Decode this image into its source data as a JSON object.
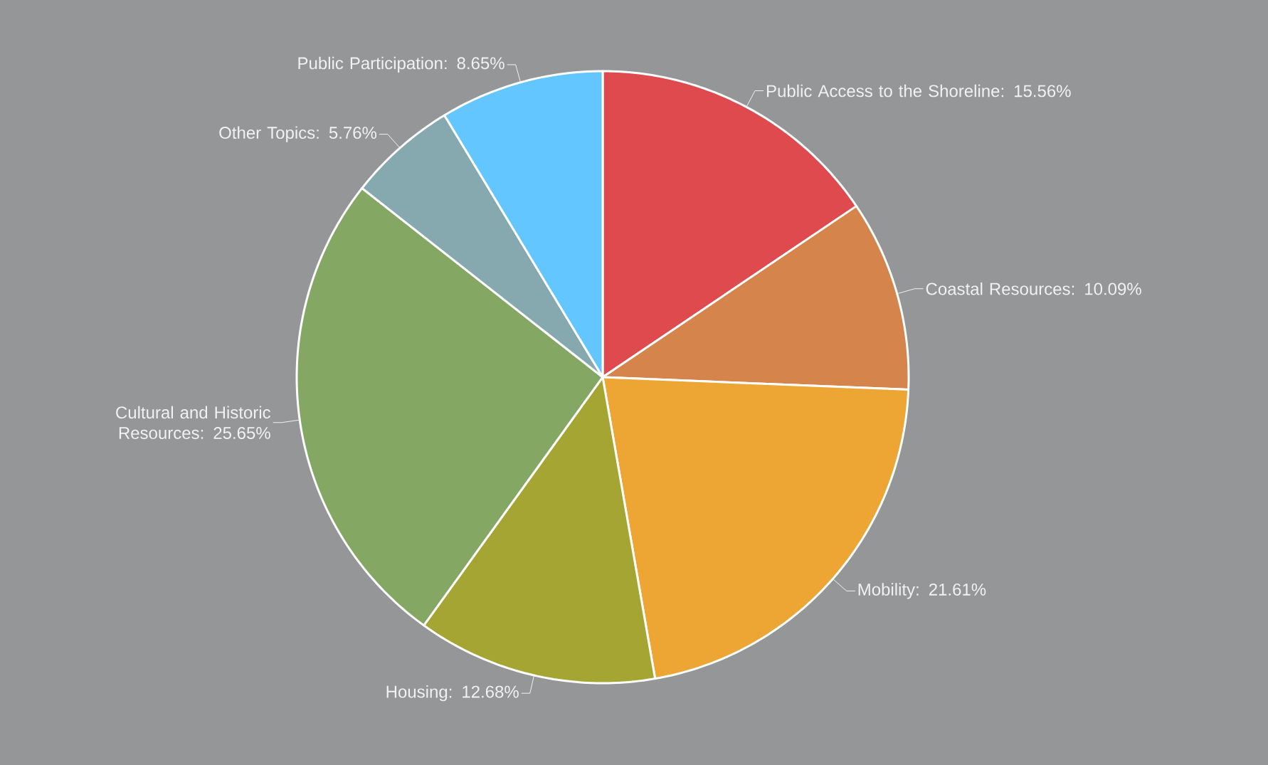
{
  "chart_data": {
    "type": "pie",
    "categories": [
      "Public Access to the Shoreline",
      "Coastal Resources",
      "Mobility",
      "Housing",
      "Cultural and Historic Resources",
      "Other Topics",
      "Public Participation"
    ],
    "values": [
      15.56,
      10.09,
      21.61,
      12.68,
      25.65,
      5.76,
      8.65
    ],
    "value_labels": [
      ": 15.56%",
      ": 10.09%",
      ": 21.61%",
      ": 12.68%",
      ": 25.65%",
      ": 5.76%",
      ": 8.65%"
    ],
    "colors": [
      "#de4a4e",
      "#d5854c",
      "#eda534",
      "#a5a533",
      "#84a863",
      "#85a9ae",
      "#63c6fe"
    ]
  }
}
